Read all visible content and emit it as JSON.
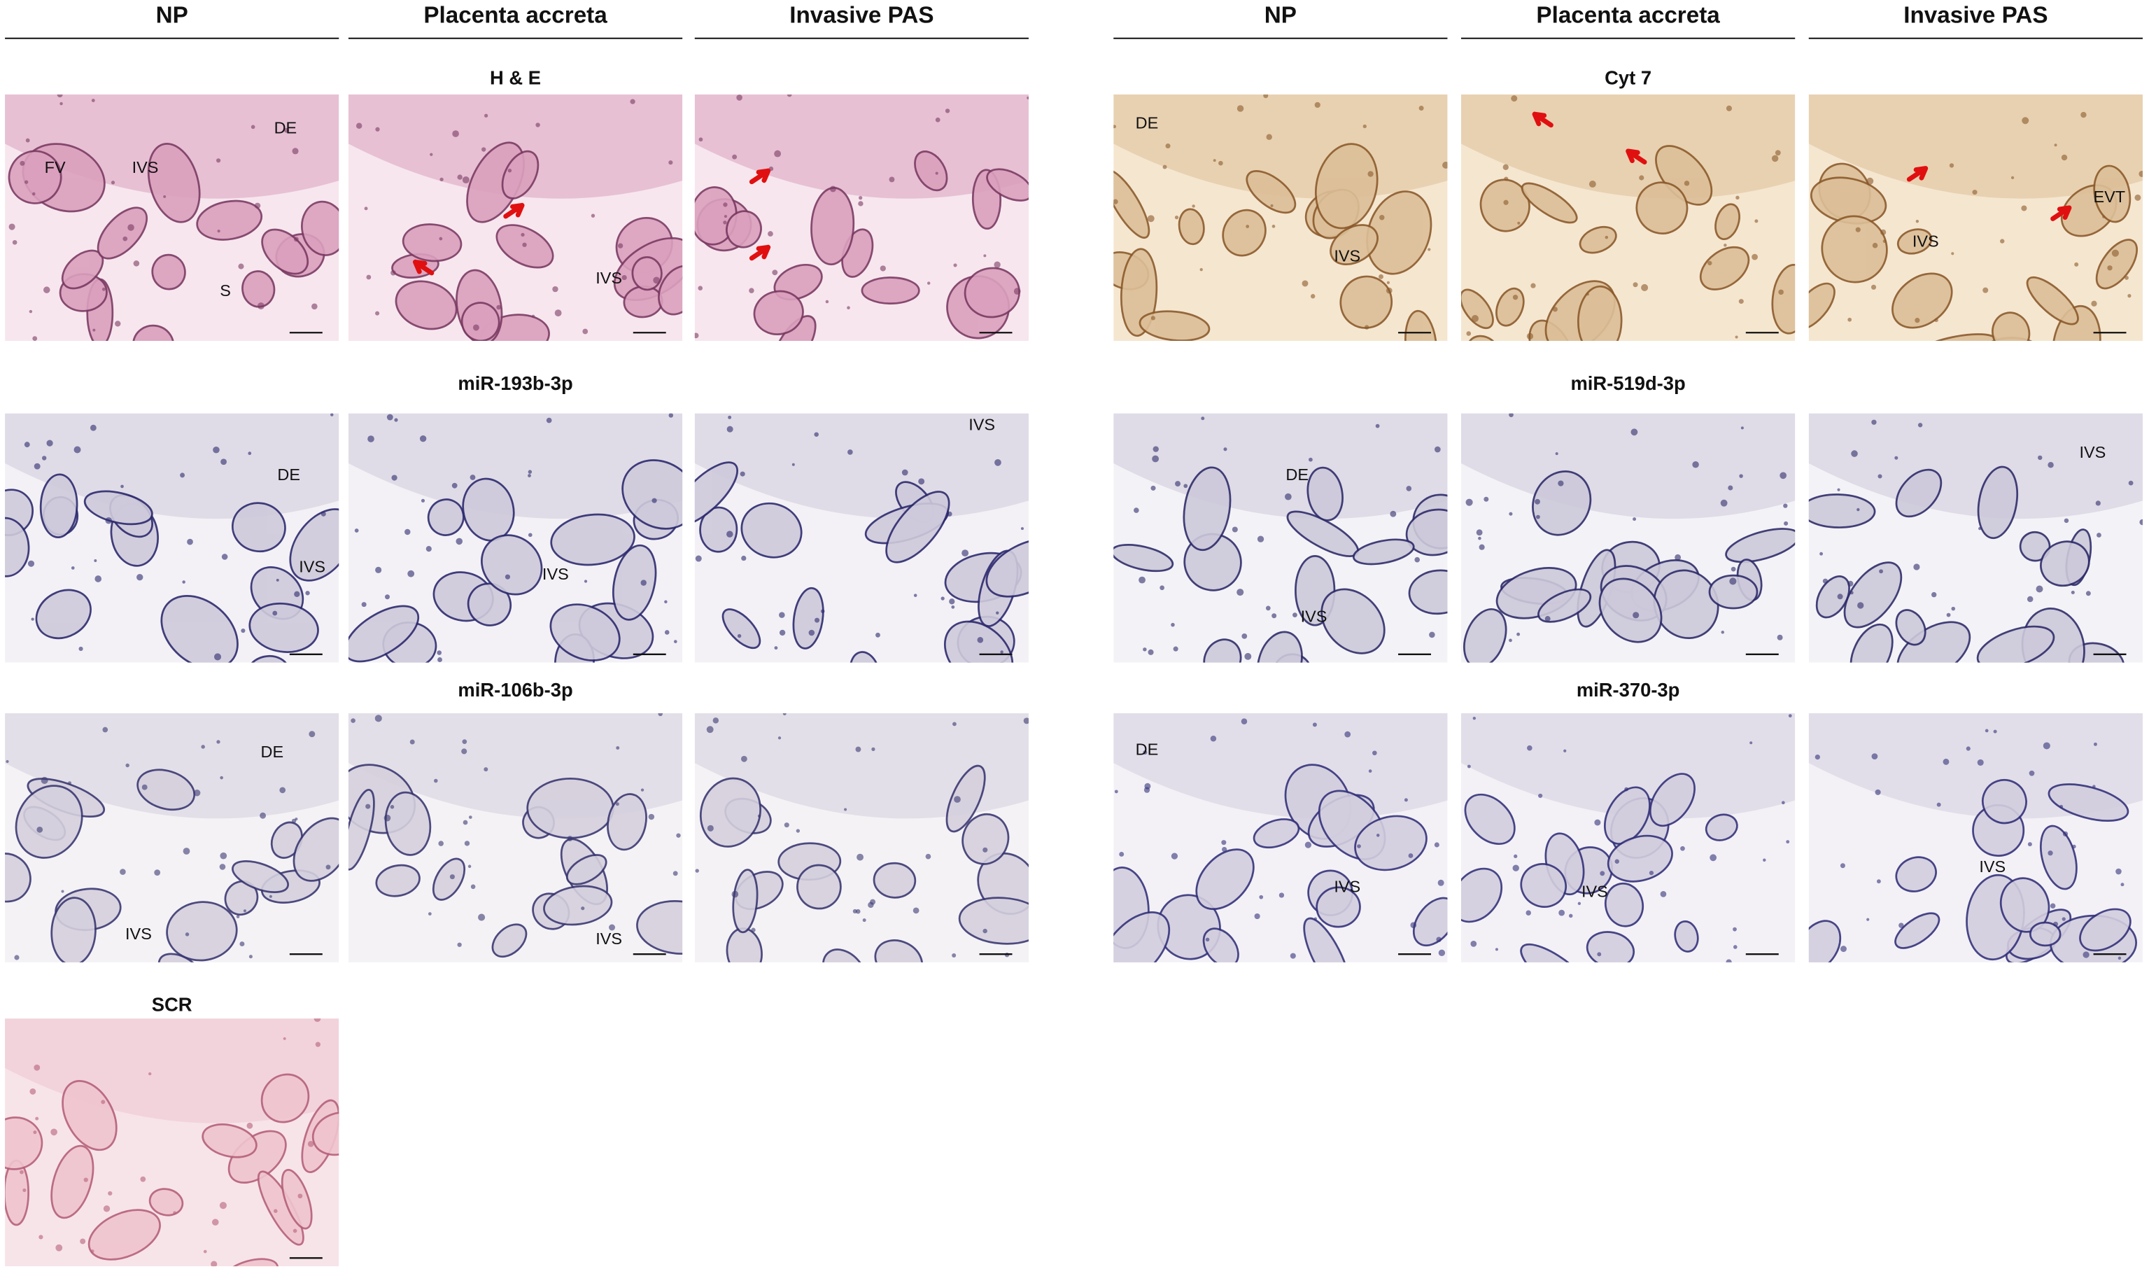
{
  "left_group": {
    "columns": [
      "NP",
      "Placenta accreta",
      "Invasive PAS"
    ],
    "rows": [
      {
        "stain": "H & E",
        "panels": [
          [
            "DE",
            "FV",
            "IVS",
            "S"
          ],
          [
            "IVS"
          ],
          []
        ]
      },
      {
        "stain": "miR-193b-3p",
        "panels": [
          [
            "DE",
            "IVS"
          ],
          [
            "IVS"
          ],
          [
            "IVS"
          ]
        ]
      },
      {
        "stain": "miR-106b-3p",
        "panels": [
          [
            "DE",
            "IVS"
          ],
          [
            "IVS"
          ],
          []
        ]
      },
      {
        "stain": "SCR",
        "panels": [
          []
        ]
      }
    ]
  },
  "right_group": {
    "columns": [
      "NP",
      "Placenta accreta",
      "Invasive PAS"
    ],
    "rows": [
      {
        "stain": "Cyt 7",
        "panels": [
          [
            "DE",
            "IVS"
          ],
          [],
          [
            "IVS",
            "EVT"
          ]
        ]
      },
      {
        "stain": "miR-519d-3p",
        "panels": [
          [
            "DE",
            "IVS"
          ],
          [],
          [
            "IVS"
          ]
        ]
      },
      {
        "stain": "miR-370-3p",
        "panels": [
          [
            "DE",
            "IVS"
          ],
          [
            "IVS"
          ],
          [
            "IVS"
          ]
        ]
      }
    ]
  }
}
